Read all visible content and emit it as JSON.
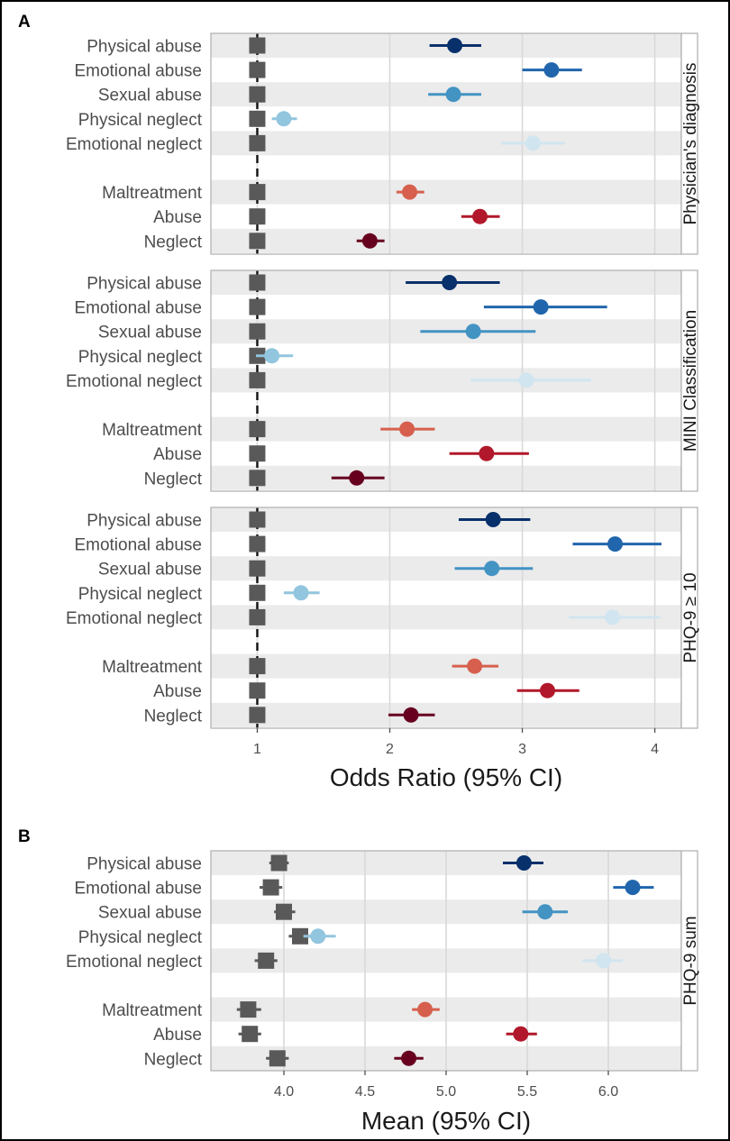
{
  "figure": {
    "panel_a_tag": "A",
    "panel_b_tag": "B"
  },
  "chart_data": [
    {
      "type": "forest",
      "panel": "A",
      "xlabel": "Odds Ratio (95% CI)",
      "xlim": [
        0.65,
        4.2
      ],
      "ticks": [
        1,
        2,
        3,
        4
      ],
      "tick_labels": [
        "1",
        "2",
        "3",
        "4"
      ],
      "reference_line": 1,
      "reference_marker": 1.0,
      "categories": [
        "Physical abuse",
        "Emotional abuse",
        "Sexual abuse",
        "Physical neglect",
        "Emotional neglect",
        "",
        "Maltreatment",
        "Abuse",
        "Neglect"
      ],
      "colors": [
        "#08306b",
        "#2166ac",
        "#4393c3",
        "#92c5de",
        "#d1e5f0",
        "",
        "#d6604d",
        "#b2182b",
        "#67001f"
      ],
      "facets": [
        {
          "strip": "Physician's diagnosis",
          "estimates": [
            2.49,
            3.22,
            2.48,
            1.2,
            3.08,
            null,
            2.15,
            2.68,
            1.85
          ],
          "lower": [
            2.3,
            3.0,
            2.29,
            1.11,
            2.84,
            null,
            2.05,
            2.54,
            1.75
          ],
          "upper": [
            2.69,
            3.45,
            2.69,
            1.3,
            3.32,
            null,
            2.26,
            2.83,
            1.96
          ]
        },
        {
          "strip": "MINI Classification",
          "estimates": [
            2.45,
            3.14,
            2.63,
            1.11,
            3.03,
            null,
            2.13,
            2.73,
            1.75
          ],
          "lower": [
            2.12,
            2.71,
            2.23,
            0.99,
            2.61,
            null,
            1.93,
            2.45,
            1.56
          ],
          "upper": [
            2.83,
            3.64,
            3.1,
            1.27,
            3.52,
            null,
            2.34,
            3.05,
            1.96
          ]
        },
        {
          "strip": "PHQ-9 ≥ 10",
          "estimates": [
            2.78,
            3.7,
            2.77,
            1.33,
            3.68,
            null,
            2.64,
            3.19,
            2.16
          ],
          "lower": [
            2.52,
            3.38,
            2.49,
            1.2,
            3.35,
            null,
            2.47,
            2.96,
            1.99
          ],
          "upper": [
            3.06,
            4.05,
            3.08,
            1.47,
            4.04,
            null,
            2.82,
            3.43,
            2.34
          ]
        }
      ]
    },
    {
      "type": "forest",
      "panel": "B",
      "xlabel": "Mean (95% CI)",
      "xlim": [
        3.55,
        6.45
      ],
      "ticks": [
        4.0,
        4.5,
        5.0,
        5.5,
        6.0
      ],
      "tick_labels": [
        "4.0",
        "4.5",
        "5.0",
        "5.5",
        "6.0"
      ],
      "categories": [
        "Physical abuse",
        "Emotional abuse",
        "Sexual abuse",
        "Physical neglect",
        "Emotional neglect",
        "",
        "Maltreatment",
        "Abuse",
        "Neglect"
      ],
      "colors": [
        "#08306b",
        "#2166ac",
        "#4393c3",
        "#92c5de",
        "#d1e5f0",
        "",
        "#d6604d",
        "#b2182b",
        "#67001f"
      ],
      "facets": [
        {
          "strip": "PHQ-9 sum",
          "reference_means": [
            3.97,
            3.92,
            4.0,
            4.1,
            3.89,
            null,
            3.78,
            3.79,
            3.96
          ],
          "reference_lower": [
            3.91,
            3.85,
            3.94,
            4.03,
            3.82,
            null,
            3.71,
            3.72,
            3.89
          ],
          "reference_upper": [
            4.03,
            3.99,
            4.07,
            4.17,
            3.96,
            null,
            3.86,
            3.86,
            4.03
          ],
          "estimates": [
            5.48,
            6.15,
            5.61,
            4.21,
            5.97,
            null,
            4.87,
            5.46,
            4.77
          ],
          "lower": [
            5.35,
            6.03,
            5.47,
            4.12,
            5.84,
            null,
            4.79,
            5.37,
            4.68
          ],
          "upper": [
            5.6,
            6.28,
            5.75,
            4.32,
            6.09,
            null,
            4.96,
            5.56,
            4.86
          ]
        }
      ]
    }
  ]
}
